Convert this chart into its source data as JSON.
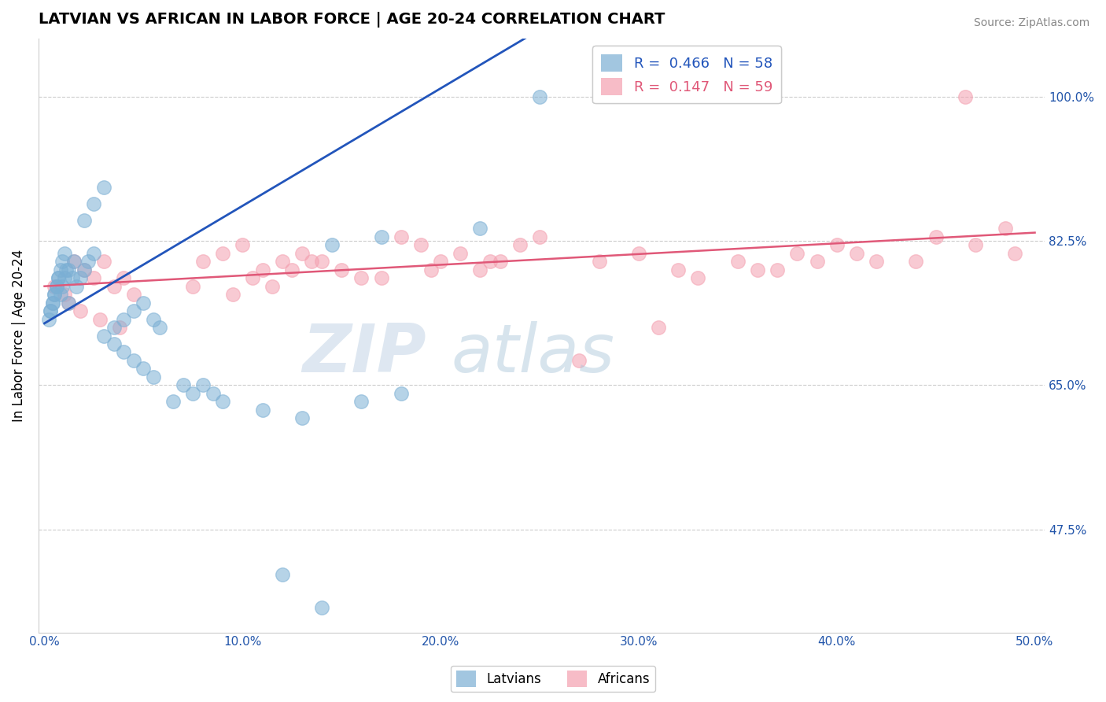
{
  "title": "LATVIAN VS AFRICAN IN LABOR FORCE | AGE 20-24 CORRELATION CHART",
  "source": "Source: ZipAtlas.com",
  "ylabel": "In Labor Force | Age 20-24",
  "xlim": [
    0.0,
    50.0
  ],
  "ylim": [
    35.0,
    107.0
  ],
  "xtick_values": [
    0.0,
    10.0,
    20.0,
    30.0,
    40.0,
    50.0
  ],
  "ytick_values": [
    47.5,
    65.0,
    82.5,
    100.0
  ],
  "latvian_color": "#7BAFD4",
  "african_color": "#F4A0B0",
  "latvian_line_color": "#2255BB",
  "african_line_color": "#E05878",
  "latvian_R": 0.466,
  "latvian_N": 58,
  "african_R": 0.147,
  "african_N": 59,
  "legend_latvians": "Latvians",
  "legend_africans": "Africans",
  "lv_x": [
    0.3,
    0.4,
    0.5,
    0.6,
    0.7,
    0.8,
    0.9,
    1.0,
    1.1,
    1.2,
    1.5,
    1.8,
    2.0,
    2.2,
    2.5,
    0.2,
    0.3,
    0.4,
    0.5,
    0.6,
    0.7,
    0.8,
    0.9,
    1.0,
    1.2,
    1.4,
    1.6,
    3.5,
    4.0,
    4.5,
    5.0,
    5.5,
    5.8,
    3.0,
    3.5,
    4.0,
    4.5,
    5.0,
    5.5,
    7.0,
    8.5,
    6.5,
    7.5,
    8.0,
    9.0,
    2.0,
    2.5,
    3.0,
    12.0,
    14.0,
    11.0,
    13.0,
    16.0,
    18.0,
    22.0,
    25.0,
    14.5,
    17.0
  ],
  "lv_y": [
    74.0,
    75.0,
    76.0,
    77.0,
    78.0,
    76.0,
    77.0,
    78.0,
    79.0,
    75.0,
    80.0,
    78.0,
    79.0,
    80.0,
    81.0,
    73.0,
    74.0,
    75.0,
    76.0,
    77.0,
    78.0,
    79.0,
    80.0,
    81.0,
    79.0,
    78.0,
    77.0,
    72.0,
    73.0,
    74.0,
    75.0,
    73.0,
    72.0,
    71.0,
    70.0,
    69.0,
    68.0,
    67.0,
    66.0,
    65.0,
    64.0,
    63.0,
    64.0,
    65.0,
    63.0,
    85.0,
    87.0,
    89.0,
    42.0,
    38.0,
    62.0,
    61.0,
    63.0,
    64.0,
    84.0,
    100.0,
    82.0,
    83.0
  ],
  "af_x": [
    0.5,
    1.0,
    1.5,
    2.0,
    2.5,
    3.0,
    3.5,
    4.0,
    4.5,
    1.2,
    1.8,
    2.8,
    3.8,
    8.0,
    9.0,
    10.0,
    11.0,
    12.0,
    13.0,
    14.0,
    15.0,
    16.0,
    7.5,
    9.5,
    10.5,
    11.5,
    12.5,
    13.5,
    18.0,
    19.0,
    20.0,
    21.0,
    22.0,
    23.0,
    24.0,
    25.0,
    17.0,
    19.5,
    22.5,
    28.0,
    30.0,
    32.0,
    33.0,
    35.0,
    36.0,
    27.0,
    31.0,
    38.0,
    40.0,
    42.0,
    37.0,
    39.0,
    41.0,
    45.0,
    47.0,
    48.5,
    44.0,
    46.5,
    49.0
  ],
  "af_y": [
    77.0,
    76.0,
    80.0,
    79.0,
    78.0,
    80.0,
    77.0,
    78.0,
    76.0,
    75.0,
    74.0,
    73.0,
    72.0,
    80.0,
    81.0,
    82.0,
    79.0,
    80.0,
    81.0,
    80.0,
    79.0,
    78.0,
    77.0,
    76.0,
    78.0,
    77.0,
    79.0,
    80.0,
    83.0,
    82.0,
    80.0,
    81.0,
    79.0,
    80.0,
    82.0,
    83.0,
    78.0,
    79.0,
    80.0,
    80.0,
    81.0,
    79.0,
    78.0,
    80.0,
    79.0,
    68.0,
    72.0,
    81.0,
    82.0,
    80.0,
    79.0,
    80.0,
    81.0,
    83.0,
    82.0,
    84.0,
    80.0,
    100.0,
    81.0
  ],
  "lv_line_x0": 0.0,
  "lv_line_y0": 72.5,
  "lv_line_x1": 20.0,
  "lv_line_y1": 101.0,
  "af_line_x0": 0.0,
  "af_line_y0": 77.0,
  "af_line_x1": 50.0,
  "af_line_y1": 83.5
}
